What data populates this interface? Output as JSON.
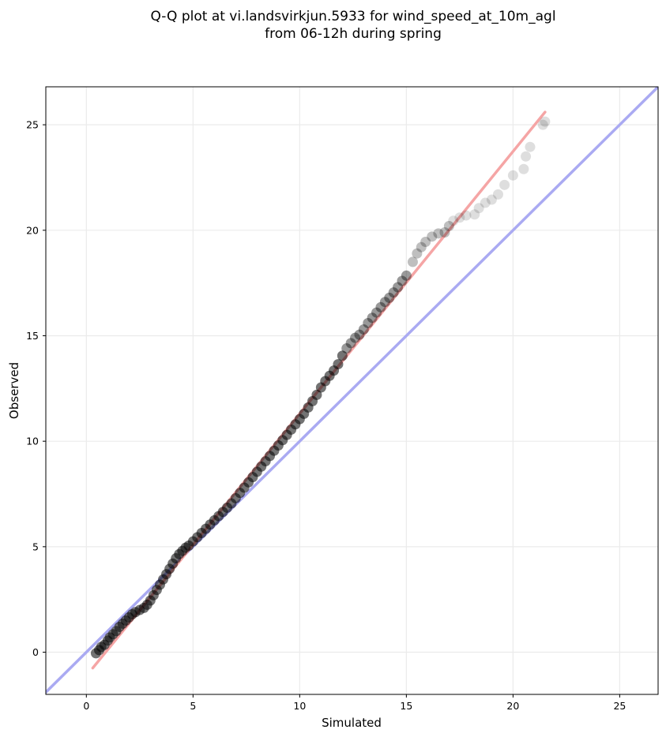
{
  "chart_data": {
    "type": "scatter",
    "title": [
      "Q-Q plot at vi.landsvirkjun.5933 for wind_speed_at_10m_agl",
      "from 06-12h during spring"
    ],
    "xlabel": "Simulated",
    "ylabel": "Observed",
    "xlim": [
      -1.9,
      26.8
    ],
    "ylim": [
      -2.0,
      26.8
    ],
    "xticks": [
      0,
      5,
      10,
      15,
      20,
      25
    ],
    "yticks": [
      0,
      5,
      10,
      15,
      20,
      25
    ],
    "grid": true,
    "identity_line": {
      "color": "#aaaaf2",
      "from": [
        -1.9,
        -1.9
      ],
      "to": [
        26.8,
        26.8
      ]
    },
    "fit_line": {
      "color": "#f5a5a5",
      "from": [
        0.3,
        -0.75
      ],
      "to": [
        21.5,
        25.6
      ]
    },
    "point_color": "#000000",
    "points": [
      [
        0.45,
        -0.05
      ],
      [
        0.6,
        0.1
      ],
      [
        0.7,
        0.25
      ],
      [
        0.85,
        0.35
      ],
      [
        1.0,
        0.55
      ],
      [
        1.1,
        0.7
      ],
      [
        1.25,
        0.85
      ],
      [
        1.4,
        1.0
      ],
      [
        1.55,
        1.2
      ],
      [
        1.7,
        1.35
      ],
      [
        1.85,
        1.5
      ],
      [
        2.0,
        1.65
      ],
      [
        2.15,
        1.8
      ],
      [
        2.3,
        1.9
      ],
      [
        2.5,
        2.0
      ],
      [
        2.7,
        2.1
      ],
      [
        2.85,
        2.25
      ],
      [
        3.0,
        2.45
      ],
      [
        3.15,
        2.7
      ],
      [
        3.3,
        2.95
      ],
      [
        3.45,
        3.2
      ],
      [
        3.6,
        3.45
      ],
      [
        3.75,
        3.7
      ],
      [
        3.9,
        3.95
      ],
      [
        4.05,
        4.2
      ],
      [
        4.2,
        4.45
      ],
      [
        4.35,
        4.65
      ],
      [
        4.5,
        4.8
      ],
      [
        4.65,
        4.95
      ],
      [
        4.8,
        5.05
      ],
      [
        5.0,
        5.25
      ],
      [
        5.2,
        5.45
      ],
      [
        5.4,
        5.65
      ],
      [
        5.6,
        5.85
      ],
      [
        5.8,
        6.05
      ],
      [
        6.0,
        6.25
      ],
      [
        6.2,
        6.45
      ],
      [
        6.4,
        6.65
      ],
      [
        6.6,
        6.85
      ],
      [
        6.8,
        7.05
      ],
      [
        7.0,
        7.3
      ],
      [
        7.2,
        7.55
      ],
      [
        7.4,
        7.8
      ],
      [
        7.6,
        8.05
      ],
      [
        7.8,
        8.3
      ],
      [
        8.0,
        8.55
      ],
      [
        8.2,
        8.8
      ],
      [
        8.4,
        9.05
      ],
      [
        8.6,
        9.3
      ],
      [
        8.8,
        9.55
      ],
      [
        9.0,
        9.8
      ],
      [
        9.2,
        10.05
      ],
      [
        9.4,
        10.3
      ],
      [
        9.6,
        10.55
      ],
      [
        9.8,
        10.8
      ],
      [
        10.0,
        11.05
      ],
      [
        10.2,
        11.3
      ],
      [
        10.4,
        11.6
      ],
      [
        10.6,
        11.9
      ],
      [
        10.8,
        12.2
      ],
      [
        11.0,
        12.55
      ],
      [
        11.2,
        12.85
      ],
      [
        11.4,
        13.1
      ],
      [
        11.6,
        13.35
      ],
      [
        11.8,
        13.65
      ],
      [
        12.0,
        14.05
      ],
      [
        12.2,
        14.4
      ],
      [
        12.4,
        14.65
      ],
      [
        12.6,
        14.9
      ],
      [
        12.8,
        15.05
      ],
      [
        13.0,
        15.3
      ],
      [
        13.2,
        15.6
      ],
      [
        13.4,
        15.85
      ],
      [
        13.6,
        16.1
      ],
      [
        13.8,
        16.35
      ],
      [
        14.0,
        16.6
      ],
      [
        14.2,
        16.8
      ],
      [
        14.4,
        17.05
      ],
      [
        14.6,
        17.3
      ],
      [
        14.8,
        17.6
      ],
      [
        15.0,
        17.85
      ],
      [
        15.3,
        18.5
      ],
      [
        15.5,
        18.9
      ],
      [
        15.7,
        19.2
      ],
      [
        15.9,
        19.45
      ],
      [
        16.2,
        19.7
      ],
      [
        16.5,
        19.85
      ],
      [
        16.8,
        19.9
      ],
      [
        17.0,
        20.2
      ],
      [
        17.2,
        20.45
      ],
      [
        17.5,
        20.6
      ],
      [
        17.8,
        20.7
      ],
      [
        18.2,
        20.75
      ],
      [
        18.4,
        21.05
      ],
      [
        18.7,
        21.3
      ],
      [
        19.0,
        21.45
      ],
      [
        19.3,
        21.7
      ],
      [
        19.6,
        22.15
      ],
      [
        20.0,
        22.6
      ],
      [
        20.5,
        22.9
      ],
      [
        20.6,
        23.5
      ],
      [
        20.8,
        23.95
      ],
      [
        21.4,
        25.0
      ],
      [
        21.5,
        25.15
      ]
    ]
  }
}
